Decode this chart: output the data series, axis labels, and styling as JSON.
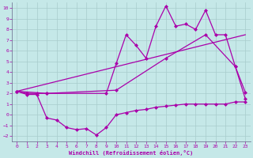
{
  "xlabel": "Windchill (Refroidissement éolien,°C)",
  "bg_color": "#c5e8e8",
  "line_color": "#aa00aa",
  "xlim": [
    -0.5,
    23.5
  ],
  "ylim": [
    -2.5,
    10.5
  ],
  "xticks": [
    0,
    1,
    2,
    3,
    4,
    5,
    6,
    7,
    8,
    9,
    10,
    11,
    12,
    13,
    14,
    15,
    16,
    17,
    18,
    19,
    20,
    21,
    22,
    23
  ],
  "yticks": [
    -2,
    -1,
    0,
    1,
    2,
    3,
    4,
    5,
    6,
    7,
    8,
    9,
    10
  ],
  "line1_x": [
    0,
    1,
    2,
    3,
    9,
    10,
    11,
    12,
    13,
    14,
    15,
    16,
    17,
    18,
    19,
    20,
    21,
    22,
    23
  ],
  "line1_y": [
    2.2,
    2.0,
    2.0,
    2.0,
    2.0,
    4.8,
    7.5,
    6.5,
    5.3,
    8.3,
    10.2,
    8.3,
    8.5,
    8.0,
    9.8,
    7.5,
    7.5,
    4.5,
    2.1
  ],
  "line2_x": [
    0,
    3,
    10,
    15,
    19,
    22,
    23
  ],
  "line2_y": [
    2.2,
    2.0,
    2.3,
    5.3,
    7.5,
    4.5,
    1.5
  ],
  "line3_x": [
    0,
    23
  ],
  "line3_y": [
    2.2,
    7.5
  ],
  "line4_x": [
    0,
    1,
    2,
    3,
    4,
    5,
    6,
    7,
    8,
    9,
    10,
    11,
    12,
    13,
    14,
    15,
    16,
    17,
    18,
    19,
    20,
    21,
    22,
    23
  ],
  "line4_y": [
    2.2,
    1.9,
    1.9,
    -0.3,
    -0.5,
    -1.2,
    -1.4,
    -1.3,
    -1.9,
    -1.2,
    0.0,
    0.2,
    0.4,
    0.5,
    0.7,
    0.8,
    0.9,
    1.0,
    1.0,
    1.0,
    1.0,
    1.0,
    1.2,
    1.2
  ]
}
